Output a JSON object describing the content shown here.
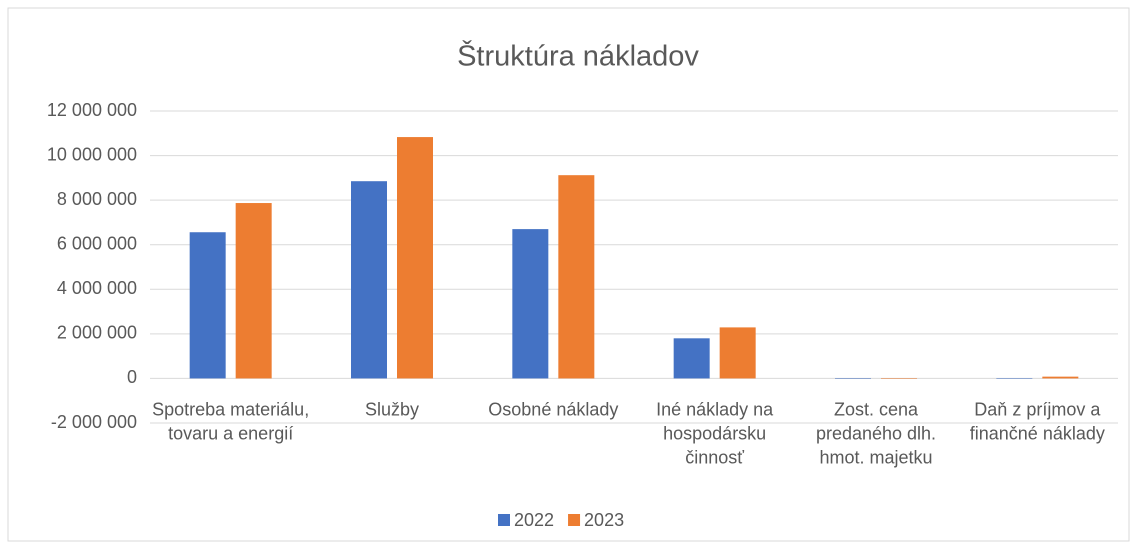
{
  "chart_data": {
    "type": "bar",
    "title": "Štruktúra nákladov",
    "categories": [
      "Spotreba materiálu, tovaru a energií",
      "Služby",
      "Osobné náklady",
      "Iné náklady na hospodársku činnosť",
      "Zost. cena predaného dlh. hmot. majetku",
      "Daň z príjmov a finančné náklady"
    ],
    "series": [
      {
        "name": "2022",
        "color": "#4472c4",
        "values": [
          6560000,
          8850000,
          6700000,
          1800000,
          0,
          10000
        ]
      },
      {
        "name": "2023",
        "color": "#ed7d31",
        "values": [
          7870000,
          10830000,
          9120000,
          2290000,
          0,
          80000
        ]
      }
    ],
    "ylim": [
      -2000000,
      12000000
    ],
    "yticks": [
      {
        "value": -2000000,
        "label": "-2 000 000"
      },
      0,
      {
        "value": 2000000,
        "label": "2 000 000"
      },
      {
        "value": 4000000,
        "label": "4 000 000"
      },
      {
        "value": 6000000,
        "label": "6 000 000"
      },
      {
        "value": 8000000,
        "label": "8 000 000"
      },
      {
        "value": 10000000,
        "label": "10 000 000"
      },
      {
        "value": 12000000,
        "label": "12 000 000"
      }
    ],
    "grid": true,
    "legend": "bottom"
  }
}
